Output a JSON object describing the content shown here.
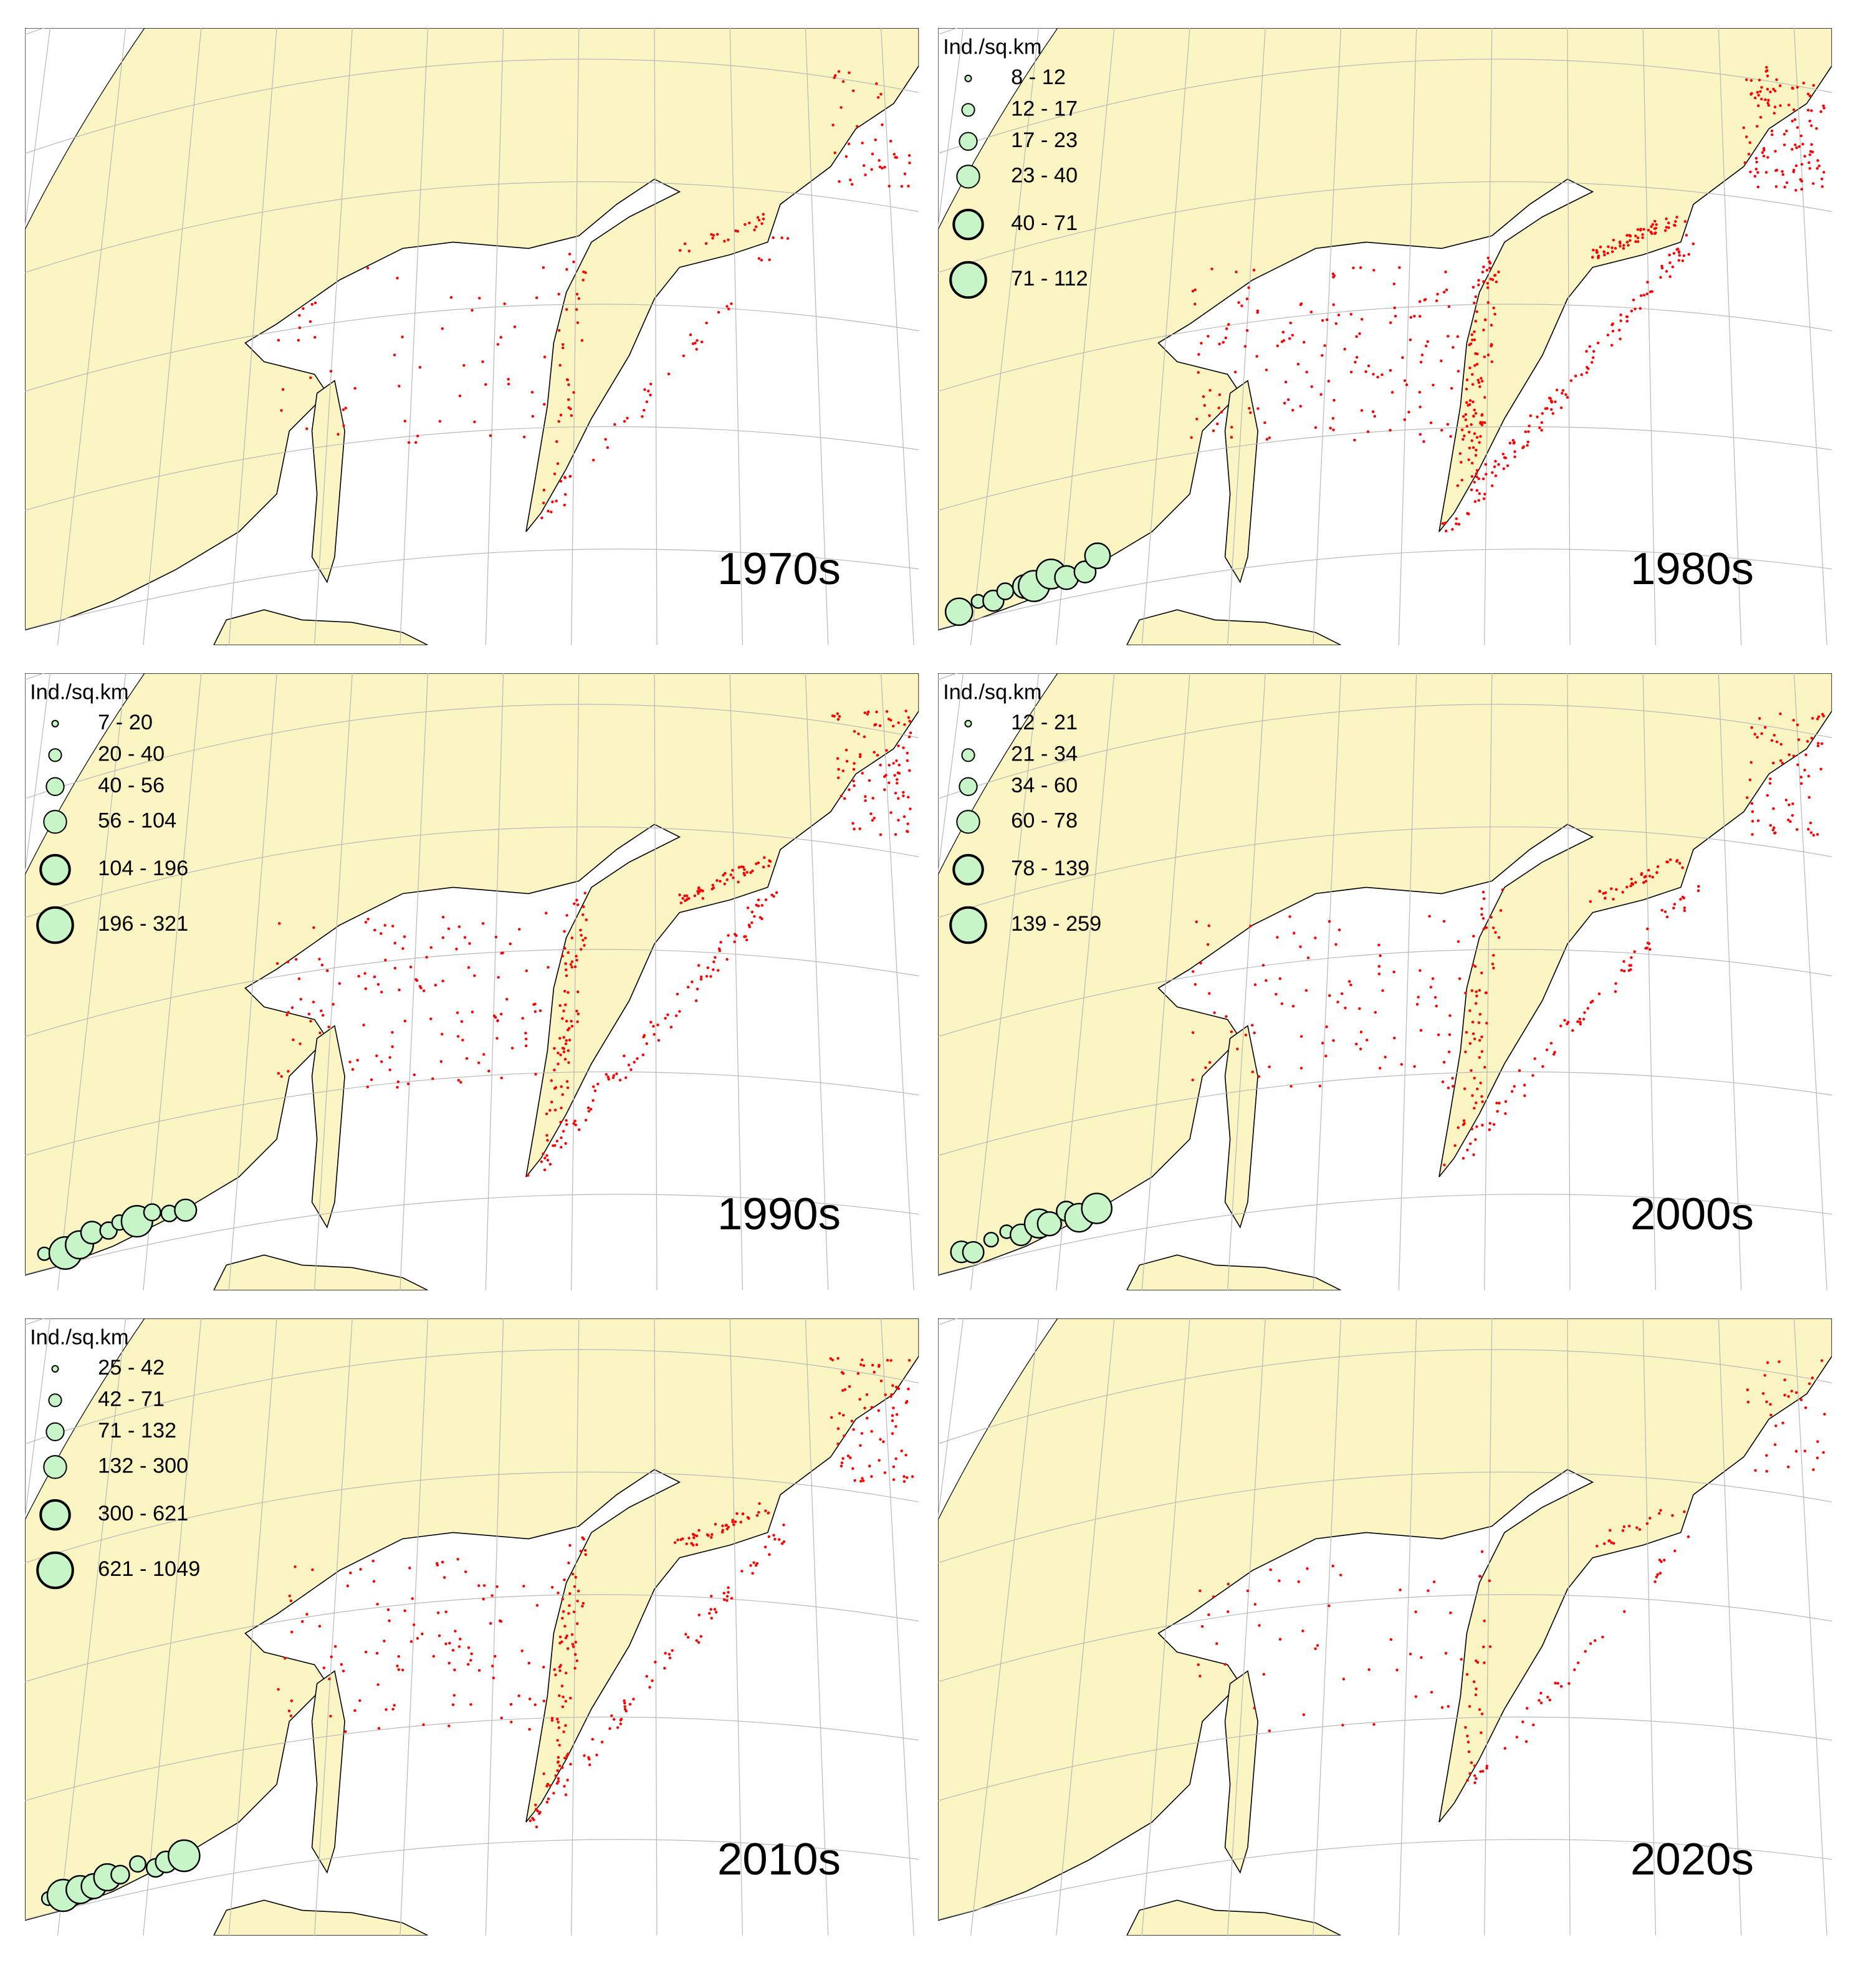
{
  "panels": [
    {
      "label": "1970s"
    },
    {
      "label": "1980s",
      "legend": {
        "title": "Ind./sq.km",
        "items": [
          "8 - 12",
          "12 - 17",
          "17 - 23",
          "23 - 40",
          "40 - 71",
          "71 - 112"
        ]
      }
    },
    {
      "label": "1990s",
      "legend": {
        "title": "Ind./sq.km",
        "items": [
          "7 - 20",
          "20 - 40",
          "40 - 56",
          "56 - 104",
          "104 - 196",
          "196 - 321"
        ]
      }
    },
    {
      "label": "2000s",
      "legend": {
        "title": "Ind./sq.km",
        "items": [
          "12 - 21",
          "21 - 34",
          "34 - 60",
          "60 - 78",
          "78 - 139",
          "139 - 259"
        ]
      }
    },
    {
      "label": "2010s",
      "legend": {
        "title": "Ind./sq.km",
        "items": [
          "25 - 42",
          "42 - 71",
          "71 - 132",
          "132 - 300",
          "300 - 621",
          "621 - 1049"
        ]
      }
    },
    {
      "label": "2020s"
    }
  ]
}
